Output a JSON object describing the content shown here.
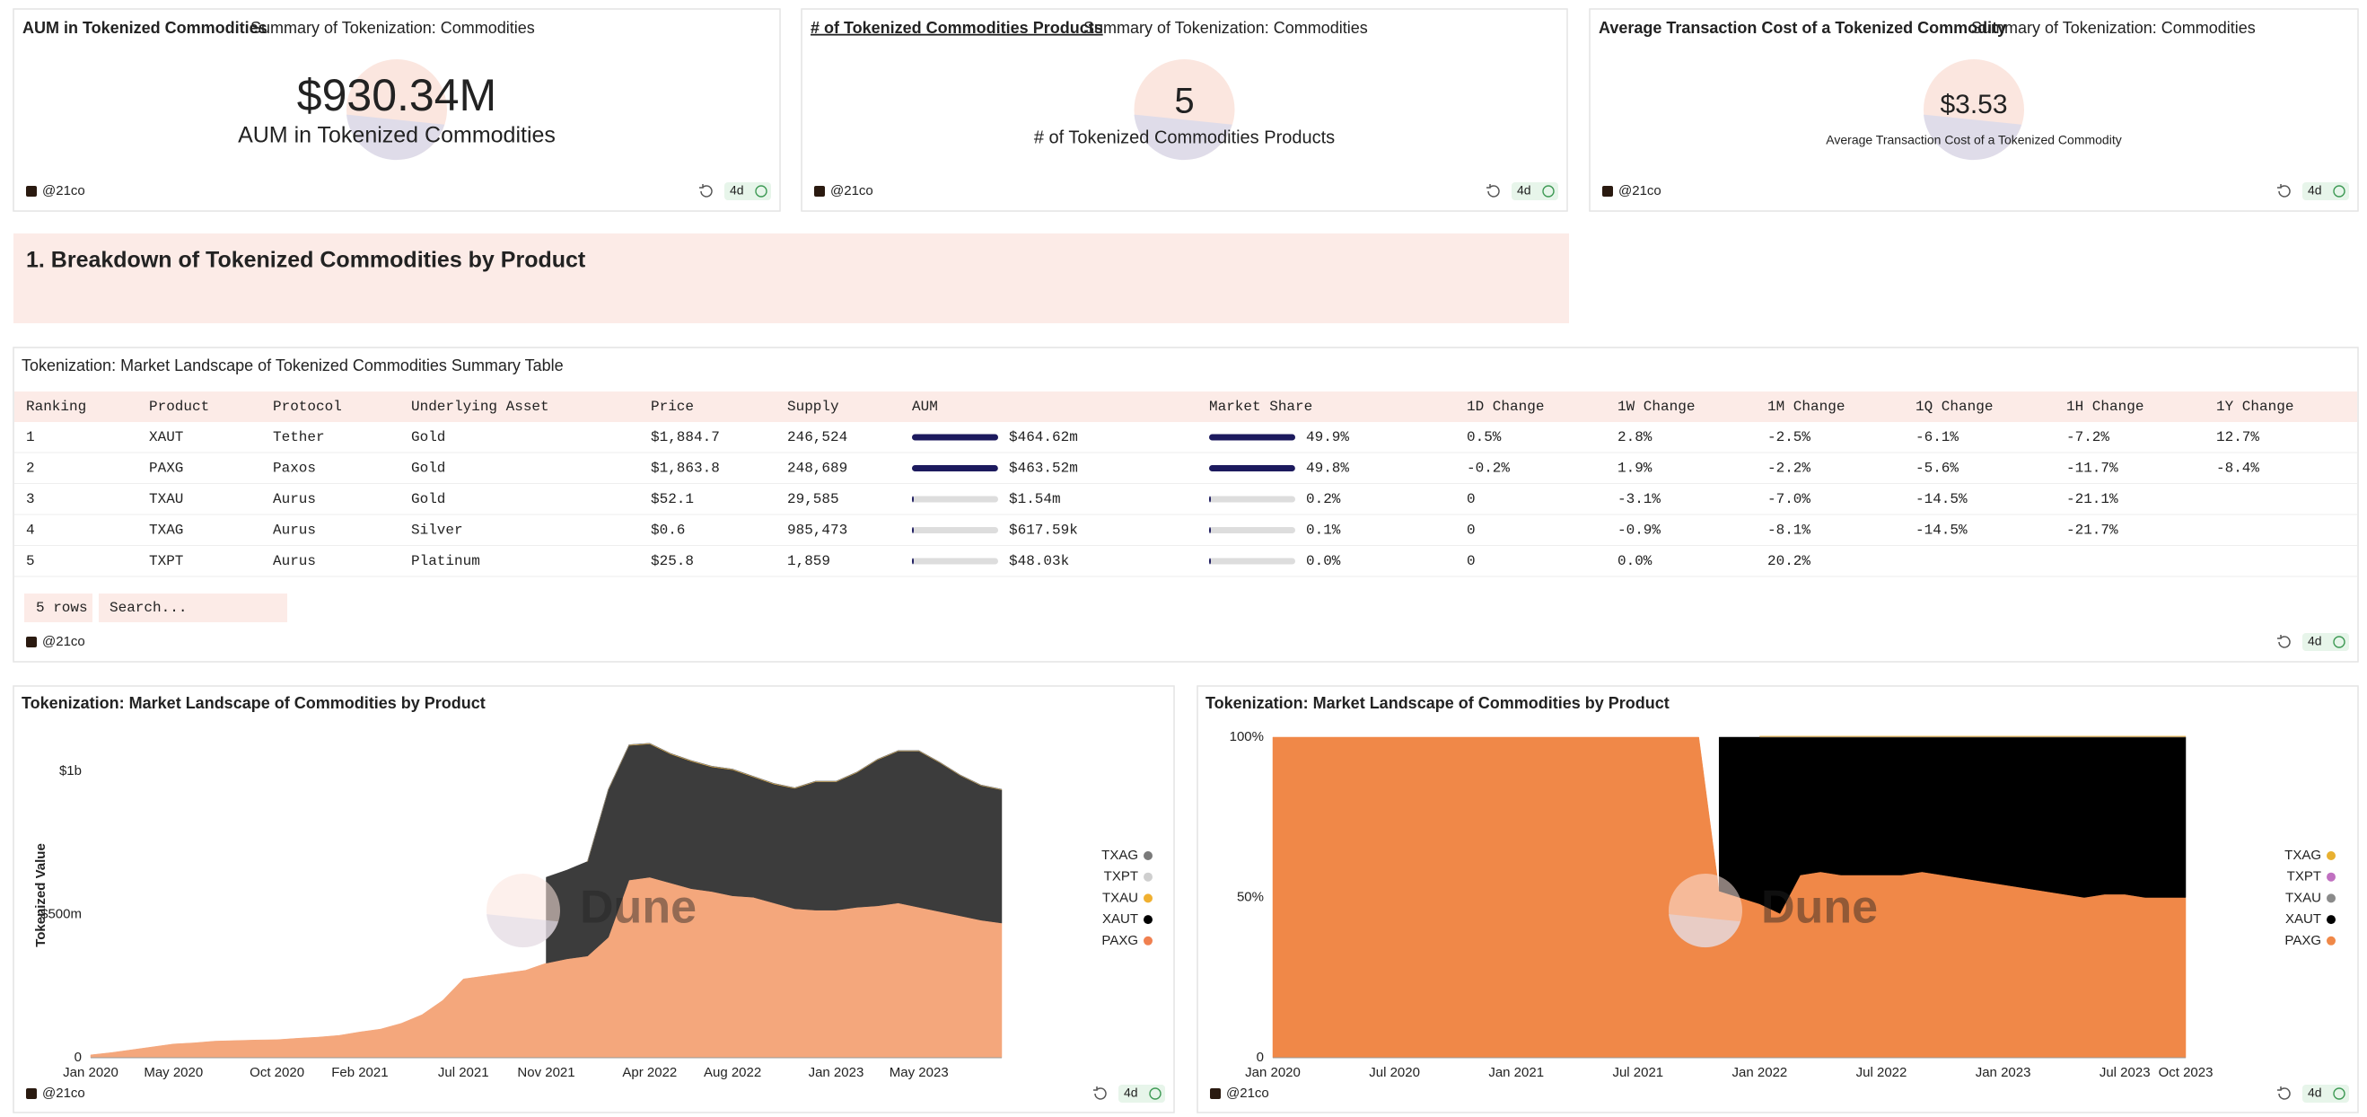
{
  "counters": [
    {
      "title": "AUM in Tokenized Commodities",
      "subtitle": "Summary of Tokenization: Commodities",
      "value": "$930.34M",
      "label": "AUM in Tokenized Commodities"
    },
    {
      "title": "# of Tokenized Commodities Products",
      "subtitle": "Summary of Tokenization: Commodities",
      "value": "5",
      "label": "# of Tokenized Commodities Products"
    },
    {
      "title": "Average Transaction Cost of a Tokenized Commodity",
      "subtitle": "Summary of Tokenization: Commodities",
      "value": "$3.53",
      "label": "Average Transaction Cost of a Tokenized Commodity"
    }
  ],
  "section_heading": "1. Breakdown of Tokenized Commodities by Product",
  "table": {
    "title": "Tokenization: Market Landscape of Tokenized Commodities Summary Table",
    "columns": [
      "Ranking",
      "Product",
      "Protocol",
      "Underlying Asset",
      "Price",
      "Supply",
      "AUM",
      "Market Share",
      "1D Change",
      "1W Change",
      "1M Change",
      "1Q Change",
      "1H Change",
      "1Y Change"
    ],
    "rows": [
      [
        "1",
        "XAUT",
        "Tether",
        "Gold",
        "$1,884.7",
        "246,524",
        {
          "value": 464.62,
          "label": "$464.62m"
        },
        {
          "value": 49.9,
          "label": "49.9%"
        },
        "0.5%",
        "2.8%",
        "-2.5%",
        "-6.1%",
        "-7.2%",
        "12.7%"
      ],
      [
        "2",
        "PAXG",
        "Paxos",
        "Gold",
        "$1,863.8",
        "248,689",
        {
          "value": 463.52,
          "label": "$463.52m"
        },
        {
          "value": 49.8,
          "label": "49.8%"
        },
        "-0.2%",
        "1.9%",
        "-2.2%",
        "-5.6%",
        "-11.7%",
        "-8.4%"
      ],
      [
        "3",
        "TXAU",
        "Aurus",
        "Gold",
        "$52.1",
        "29,585",
        {
          "value": 1.54,
          "label": "$1.54m"
        },
        {
          "value": 0.2,
          "label": "0.2%"
        },
        "0",
        "-3.1%",
        "-7.0%",
        "-14.5%",
        "-21.1%",
        null
      ],
      [
        "4",
        "TXAG",
        "Aurus",
        "Silver",
        "$0.6",
        "985,473",
        {
          "value": 0.61759,
          "label": "$617.59k"
        },
        {
          "value": 0.1,
          "label": "0.1%"
        },
        "0",
        "-0.9%",
        "-8.1%",
        "-14.5%",
        "-21.7%",
        null
      ],
      [
        "5",
        "TXPT",
        "Aurus",
        "Platinum",
        "$25.8",
        "1,859",
        {
          "value": 0.04803,
          "label": "$48.03k"
        },
        {
          "value": 0.0,
          "label": "0.0%"
        },
        "0",
        "0.0%",
        "20.2%",
        null,
        null,
        null
      ]
    ],
    "row_count": "5 rows",
    "search_placeholder": "Search..."
  },
  "author": "@21co",
  "age": "4d",
  "watermark": "Dune",
  "chart_data": [
    {
      "type": "stacked_area",
      "title": "Tokenization: Market Landscape of Commodities by Product",
      "ylabel": "Tokenized Value",
      "x": [
        "2020-01",
        "2020-02",
        "2020-03",
        "2020-04",
        "2020-05",
        "2020-06",
        "2020-07",
        "2020-08",
        "2020-09",
        "2020-10",
        "2020-11",
        "2020-12",
        "2021-01",
        "2021-02",
        "2021-03",
        "2021-04",
        "2021-05",
        "2021-06",
        "2021-07",
        "2021-08",
        "2021-09",
        "2021-10",
        "2021-11",
        "2021-12",
        "2022-01",
        "2022-02",
        "2022-03",
        "2022-04",
        "2022-05",
        "2022-06",
        "2022-07",
        "2022-08",
        "2022-09",
        "2022-10",
        "2022-11",
        "2022-12",
        "2023-01",
        "2023-02",
        "2023-03",
        "2023-04",
        "2023-05",
        "2023-06",
        "2023-07",
        "2023-08",
        "2023-09"
      ],
      "xlim": [
        "2020-01",
        "2023-09"
      ],
      "xticks": [
        {
          "value": "2020-01",
          "label": "Jan 2020"
        },
        {
          "value": "2020-05",
          "label": "May 2020"
        },
        {
          "value": "2020-10",
          "label": "Oct 2020"
        },
        {
          "value": "2021-02",
          "label": "Feb 2021"
        },
        {
          "value": "2021-07",
          "label": "Jul 2021"
        },
        {
          "value": "2021-11",
          "label": "Nov 2021"
        },
        {
          "value": "2022-04",
          "label": "Apr 2022"
        },
        {
          "value": "2022-08",
          "label": "Aug 2022"
        },
        {
          "value": "2023-01",
          "label": "Jan 2023"
        },
        {
          "value": "2023-05",
          "label": "May 2023"
        }
      ],
      "ylim": [
        0,
        1150
      ],
      "yticks": [
        0,
        {
          "value": 500,
          "label": "$500m"
        },
        {
          "value": 1000,
          "label": "$1b"
        }
      ],
      "series": [
        {
          "name": "TXAG",
          "color": "#7a7a7a",
          "values": [
            null,
            null,
            null,
            null,
            null,
            null,
            null,
            null,
            null,
            null,
            null,
            null,
            null,
            null,
            null,
            null,
            null,
            null,
            null,
            null,
            null,
            null,
            null,
            null,
            0.6,
            0.6,
            0.6,
            0.6,
            0.6,
            0.6,
            0.6,
            0.6,
            0.6,
            0.6,
            0.6,
            0.6,
            0.6,
            0.6,
            0.6,
            0.6,
            0.6,
            0.6,
            0.6,
            0.6,
            0.6
          ]
        },
        {
          "name": "TXPT",
          "color": "#cfcfcf",
          "values": [
            null,
            null,
            null,
            null,
            null,
            null,
            null,
            null,
            null,
            null,
            null,
            null,
            null,
            null,
            null,
            null,
            null,
            null,
            null,
            null,
            null,
            null,
            null,
            null,
            0.05,
            0.05,
            0.05,
            0.05,
            0.05,
            0.05,
            0.05,
            0.05,
            0.05,
            0.05,
            0.05,
            0.05,
            0.05,
            0.05,
            0.05,
            0.05,
            0.05,
            0.05,
            0.05,
            0.05,
            0.05
          ]
        },
        {
          "name": "TXAU",
          "color": "#f0b030",
          "values": [
            null,
            null,
            null,
            null,
            null,
            null,
            null,
            null,
            null,
            null,
            null,
            null,
            null,
            null,
            null,
            null,
            null,
            null,
            null,
            null,
            null,
            null,
            null,
            null,
            2,
            2,
            2,
            2,
            2,
            2,
            2,
            2,
            2,
            2,
            1.8,
            1.7,
            1.7,
            1.7,
            1.6,
            1.6,
            1.6,
            1.6,
            1.5,
            1.5,
            1.5
          ]
        },
        {
          "name": "XAUT",
          "color": "#3c3c3c",
          "values": [
            null,
            null,
            null,
            null,
            null,
            null,
            null,
            null,
            null,
            null,
            null,
            null,
            null,
            null,
            null,
            null,
            null,
            null,
            null,
            null,
            null,
            null,
            300,
            310,
            330,
            515,
            470,
            465,
            450,
            445,
            435,
            440,
            420,
            415,
            420,
            448,
            448,
            470,
            510,
            530,
            545,
            520,
            490,
            470,
            465
          ]
        },
        {
          "name": "PAXG",
          "color": "#f4a77c",
          "values": [
            10,
            18,
            28,
            38,
            48,
            52,
            58,
            60,
            62,
            63,
            68,
            72,
            78,
            90,
            100,
            120,
            150,
            200,
            275,
            285,
            295,
            305,
            330,
            345,
            355,
            420,
            620,
            630,
            610,
            590,
            580,
            565,
            560,
            540,
            520,
            515,
            515,
            525,
            530,
            540,
            525,
            510,
            495,
            480,
            470
          ]
        }
      ],
      "legend_colors": [
        "#7a7a7a",
        "#cfcfcf",
        "#f0b030",
        "#000000",
        "#f08050"
      ]
    },
    {
      "type": "stacked_area",
      "title": "Tokenization: Market Landscape of Commodities by Product",
      "x": [
        "2020-01",
        "2020-02",
        "2020-03",
        "2020-04",
        "2020-05",
        "2020-06",
        "2020-07",
        "2020-08",
        "2020-09",
        "2020-10",
        "2020-11",
        "2020-12",
        "2021-01",
        "2021-02",
        "2021-03",
        "2021-04",
        "2021-05",
        "2021-06",
        "2021-07",
        "2021-08",
        "2021-09",
        "2021-10",
        "2021-11",
        "2021-12",
        "2022-01",
        "2022-02",
        "2022-03",
        "2022-04",
        "2022-05",
        "2022-06",
        "2022-07",
        "2022-08",
        "2022-09",
        "2022-10",
        "2022-11",
        "2022-12",
        "2023-01",
        "2023-02",
        "2023-03",
        "2023-04",
        "2023-05",
        "2023-06",
        "2023-07",
        "2023-08",
        "2023-09",
        "2023-10"
      ],
      "xlim": [
        "2020-01",
        "2023-10"
      ],
      "xticks": [
        {
          "value": "2020-01",
          "label": "Jan 2020"
        },
        {
          "value": "2020-07",
          "label": "Jul 2020"
        },
        {
          "value": "2021-01",
          "label": "Jan 2021"
        },
        {
          "value": "2021-07",
          "label": "Jul 2021"
        },
        {
          "value": "2022-01",
          "label": "Jan 2022"
        },
        {
          "value": "2022-07",
          "label": "Jul 2022"
        },
        {
          "value": "2023-01",
          "label": "Jan 2023"
        },
        {
          "value": "2023-07",
          "label": "Jul 2023"
        },
        {
          "value": "2023-10",
          "label": "Oct 2023"
        }
      ],
      "ylim": [
        0,
        100
      ],
      "yticks": [
        0,
        {
          "value": 50,
          "label": "50%"
        },
        {
          "value": 100,
          "label": "100%"
        }
      ],
      "series": [
        {
          "name": "TXAG",
          "color": "#e8b030",
          "values": [
            null,
            null,
            null,
            null,
            null,
            null,
            null,
            null,
            null,
            null,
            null,
            null,
            null,
            null,
            null,
            null,
            null,
            null,
            null,
            null,
            null,
            null,
            null,
            null,
            0.1,
            0.1,
            0.1,
            0.1,
            0.1,
            0.1,
            0.1,
            0.1,
            0.1,
            0.1,
            0.1,
            0.1,
            0.1,
            0.1,
            0.1,
            0.1,
            0.1,
            0.1,
            0.1,
            0.1,
            0.1,
            0.1
          ]
        },
        {
          "name": "TXPT",
          "color": "#c070c0",
          "values": [
            null,
            null,
            null,
            null,
            null,
            null,
            null,
            null,
            null,
            null,
            null,
            null,
            null,
            null,
            null,
            null,
            null,
            null,
            null,
            null,
            null,
            null,
            null,
            null,
            0,
            0,
            0,
            0,
            0,
            0,
            0,
            0,
            0,
            0,
            0,
            0,
            0,
            0,
            0,
            0,
            0,
            0,
            0,
            0,
            0,
            0
          ]
        },
        {
          "name": "TXAU",
          "color": "#8a8a8a",
          "values": [
            null,
            null,
            null,
            null,
            null,
            null,
            null,
            null,
            null,
            null,
            null,
            null,
            null,
            null,
            null,
            null,
            null,
            null,
            null,
            null,
            null,
            null,
            null,
            null,
            0.2,
            0.2,
            0.2,
            0.2,
            0.2,
            0.2,
            0.2,
            0.2,
            0.2,
            0.2,
            0.2,
            0.2,
            0.2,
            0.2,
            0.2,
            0.2,
            0.2,
            0.2,
            0.2,
            0.2,
            0.2,
            0.2
          ]
        },
        {
          "name": "XAUT",
          "color": "#000000",
          "values": [
            null,
            null,
            null,
            null,
            null,
            null,
            null,
            null,
            null,
            null,
            null,
            null,
            null,
            null,
            null,
            null,
            null,
            null,
            null,
            null,
            null,
            null,
            48,
            50,
            52,
            55,
            43,
            42,
            43,
            43,
            43,
            43,
            42,
            43,
            44,
            45,
            46,
            47,
            48,
            49,
            50,
            49,
            49,
            50,
            50,
            50
          ]
        },
        {
          "name": "PAXG",
          "color": "#f08848",
          "values": [
            100,
            100,
            100,
            100,
            100,
            100,
            100,
            100,
            100,
            100,
            100,
            100,
            100,
            100,
            100,
            100,
            100,
            100,
            100,
            100,
            100,
            100,
            52,
            50,
            48,
            45,
            57,
            58,
            57,
            57,
            57,
            57,
            58,
            57,
            56,
            55,
            54,
            53,
            52,
            51,
            50,
            51,
            51,
            50,
            50,
            50
          ]
        }
      ]
    }
  ]
}
